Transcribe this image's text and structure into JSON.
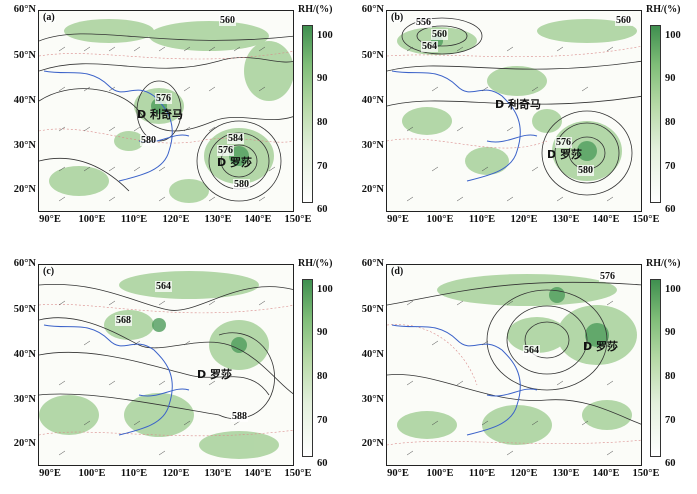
{
  "lat_labels": [
    "60°N",
    "50°N",
    "40°N",
    "30°N",
    "20°N"
  ],
  "lon_labels": [
    "90°E",
    "100°E",
    "110°E",
    "120°E",
    "130°E",
    "140°E",
    "150°E"
  ],
  "colorbar": {
    "title": "RH/(%)",
    "ticks": [
      "100",
      "90",
      "80",
      "70",
      "60"
    ],
    "colors": {
      "low": "#ffffff",
      "mid": "#b6d9a6",
      "high": "#3f8f4f"
    }
  },
  "panels": [
    {
      "label": "(a)",
      "contours": [
        {
          "text": "560"
        },
        {
          "text": "576"
        },
        {
          "text": "580"
        },
        {
          "text": "584"
        },
        {
          "text": "576"
        },
        {
          "text": "580"
        }
      ],
      "systems": [
        {
          "text": "D 利奇马"
        },
        {
          "text": "D 罗莎"
        }
      ]
    },
    {
      "label": "(b)",
      "contours": [
        {
          "text": "556"
        },
        {
          "text": "560"
        },
        {
          "text": "564"
        },
        {
          "text": "560"
        },
        {
          "text": "576"
        },
        {
          "text": "580"
        }
      ],
      "systems": [
        {
          "text": "D 利奇马"
        },
        {
          "text": "D 罗莎"
        }
      ]
    },
    {
      "label": "(c)",
      "contours": [
        {
          "text": "564"
        },
        {
          "text": "568"
        },
        {
          "text": "588"
        }
      ],
      "systems": [
        {
          "text": "D 罗莎"
        }
      ]
    },
    {
      "label": "(d)",
      "contours": [
        {
          "text": "576"
        },
        {
          "text": "564"
        }
      ],
      "systems": [
        {
          "text": "D 罗莎"
        }
      ]
    }
  ]
}
